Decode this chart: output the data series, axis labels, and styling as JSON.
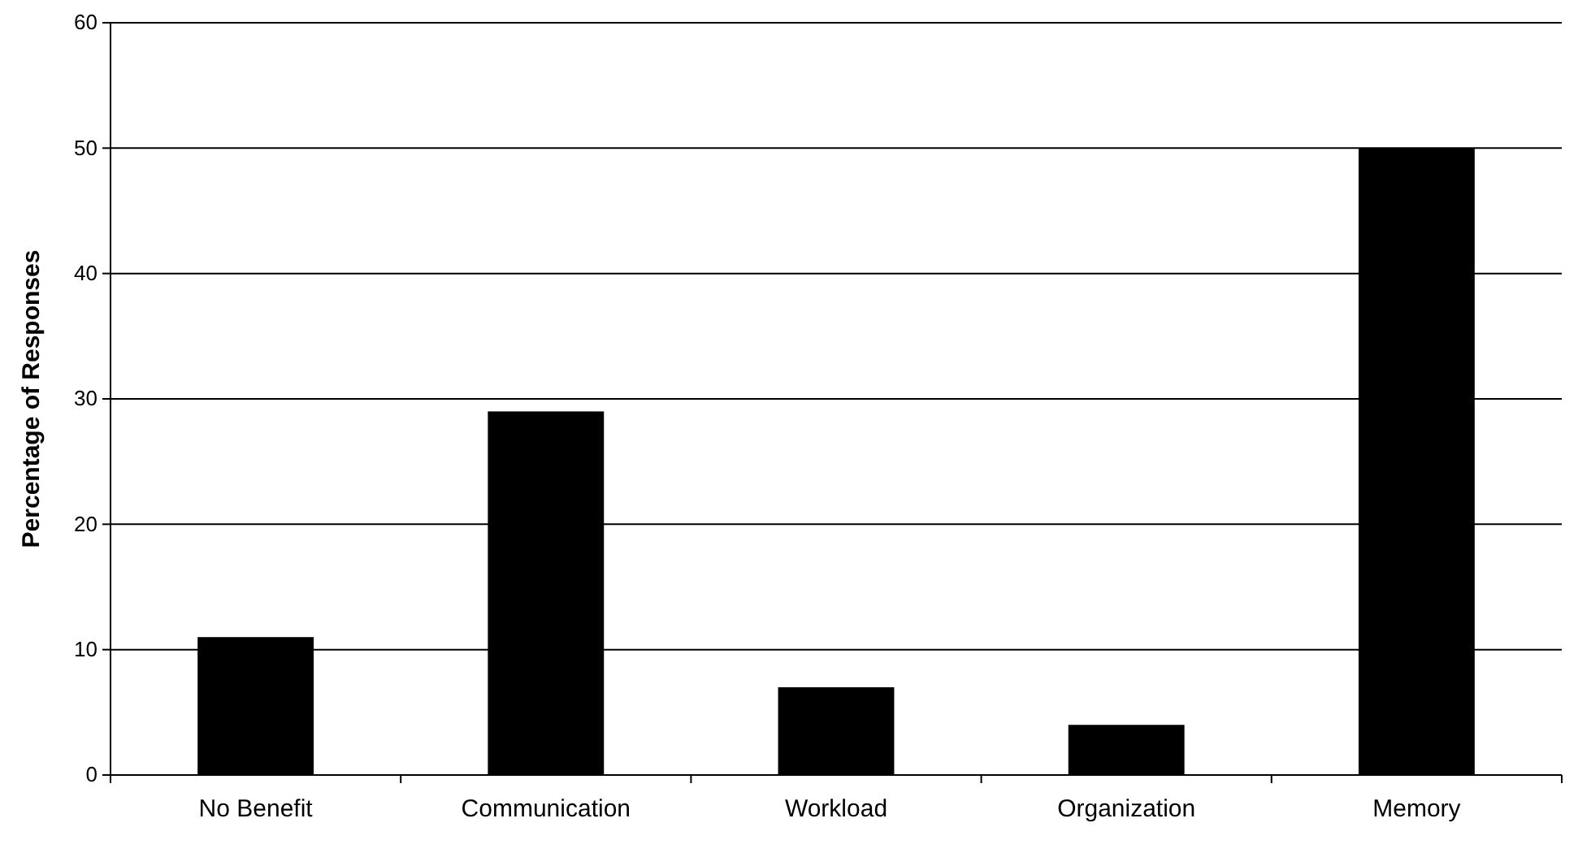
{
  "chart_data": {
    "type": "bar",
    "ylabel": "Percentage of Responses",
    "categories": [
      "No Benefit",
      "Communication",
      "Workload",
      "Organization",
      "Memory"
    ],
    "values": [
      11,
      29,
      7,
      4,
      50
    ],
    "color": "#000000",
    "ylim": [
      0,
      60
    ],
    "yticks": [
      0,
      10,
      20,
      30,
      40,
      50,
      60
    ],
    "grid": "y"
  }
}
